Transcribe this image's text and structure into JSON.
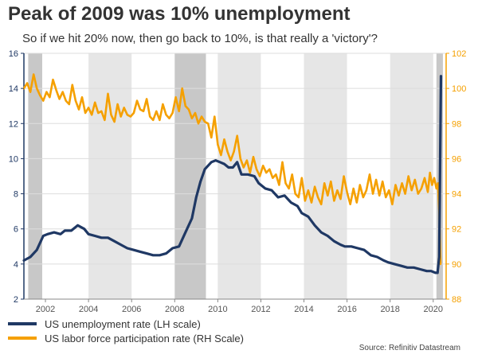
{
  "chart_data": {
    "type": "line",
    "title": "Peak of 2009 was 10% unemployment",
    "subtitle": "So if we hit 20% now, then go back to 10%, is that really a 'victory'?",
    "source": "Source: Refinitiv Datastream",
    "x_ticks": [
      2002,
      2004,
      2006,
      2008,
      2010,
      2012,
      2014,
      2016,
      2018,
      2020
    ],
    "xlim": [
      2001.0,
      2020.6
    ],
    "left_axis": {
      "ylim": [
        2,
        16
      ],
      "ticks": [
        2,
        4,
        6,
        8,
        10,
        12,
        14,
        16
      ],
      "color": "#1f3864"
    },
    "right_axis": {
      "ylim": [
        88,
        102
      ],
      "ticks": [
        88,
        90,
        92,
        94,
        96,
        98,
        100,
        102
      ],
      "color": "#f5a000"
    },
    "shaded_periods": [
      {
        "start": 2001.2,
        "end": 2001.85,
        "kind": "recession"
      },
      {
        "start": 2004.0,
        "end": 2006.0,
        "kind": "band"
      },
      {
        "start": 2008.0,
        "end": 2009.45,
        "kind": "recession"
      },
      {
        "start": 2010.0,
        "end": 2012.0,
        "kind": "band"
      },
      {
        "start": 2014.0,
        "end": 2016.0,
        "kind": "band"
      },
      {
        "start": 2018.0,
        "end": 2020.0,
        "kind": "band"
      },
      {
        "start": 2020.15,
        "end": 2020.45,
        "kind": "recession"
      }
    ],
    "colors": {
      "recession": "#c8c8c8",
      "band": "#e6e6e6",
      "grid": "#dddddd"
    },
    "series": [
      {
        "name": "US unemployment rate (LH scale)",
        "axis": "left",
        "color": "#1f3864",
        "points": [
          [
            2001.0,
            4.2
          ],
          [
            2001.3,
            4.4
          ],
          [
            2001.6,
            4.8
          ],
          [
            2001.9,
            5.6
          ],
          [
            2002.1,
            5.7
          ],
          [
            2002.4,
            5.8
          ],
          [
            2002.7,
            5.7
          ],
          [
            2002.9,
            5.9
          ],
          [
            2003.2,
            5.9
          ],
          [
            2003.5,
            6.2
          ],
          [
            2003.8,
            6.0
          ],
          [
            2004.0,
            5.7
          ],
          [
            2004.3,
            5.6
          ],
          [
            2004.6,
            5.5
          ],
          [
            2004.9,
            5.5
          ],
          [
            2005.2,
            5.3
          ],
          [
            2005.5,
            5.1
          ],
          [
            2005.8,
            4.9
          ],
          [
            2006.1,
            4.8
          ],
          [
            2006.4,
            4.7
          ],
          [
            2006.7,
            4.6
          ],
          [
            2007.0,
            4.5
          ],
          [
            2007.3,
            4.5
          ],
          [
            2007.6,
            4.6
          ],
          [
            2007.9,
            4.9
          ],
          [
            2008.2,
            5.0
          ],
          [
            2008.5,
            5.8
          ],
          [
            2008.8,
            6.6
          ],
          [
            2009.0,
            7.8
          ],
          [
            2009.2,
            8.7
          ],
          [
            2009.4,
            9.4
          ],
          [
            2009.7,
            9.8
          ],
          [
            2009.9,
            9.9
          ],
          [
            2010.1,
            9.8
          ],
          [
            2010.3,
            9.7
          ],
          [
            2010.5,
            9.5
          ],
          [
            2010.7,
            9.5
          ],
          [
            2010.9,
            9.8
          ],
          [
            2011.1,
            9.1
          ],
          [
            2011.4,
            9.1
          ],
          [
            2011.7,
            9.0
          ],
          [
            2011.9,
            8.6
          ],
          [
            2012.2,
            8.3
          ],
          [
            2012.5,
            8.2
          ],
          [
            2012.8,
            7.8
          ],
          [
            2013.1,
            7.9
          ],
          [
            2013.4,
            7.5
          ],
          [
            2013.7,
            7.3
          ],
          [
            2013.9,
            6.9
          ],
          [
            2014.2,
            6.7
          ],
          [
            2014.5,
            6.2
          ],
          [
            2014.8,
            5.8
          ],
          [
            2015.1,
            5.6
          ],
          [
            2015.4,
            5.3
          ],
          [
            2015.7,
            5.1
          ],
          [
            2015.9,
            5.0
          ],
          [
            2016.2,
            5.0
          ],
          [
            2016.5,
            4.9
          ],
          [
            2016.8,
            4.8
          ],
          [
            2017.1,
            4.5
          ],
          [
            2017.4,
            4.4
          ],
          [
            2017.7,
            4.2
          ],
          [
            2017.9,
            4.1
          ],
          [
            2018.2,
            4.0
          ],
          [
            2018.5,
            3.9
          ],
          [
            2018.8,
            3.8
          ],
          [
            2019.1,
            3.8
          ],
          [
            2019.4,
            3.7
          ],
          [
            2019.7,
            3.6
          ],
          [
            2019.9,
            3.6
          ],
          [
            2020.1,
            3.5
          ],
          [
            2020.2,
            3.5
          ],
          [
            2020.28,
            4.4
          ],
          [
            2020.36,
            14.7
          ]
        ]
      },
      {
        "name": "US labor force participation rate (RH Scale)",
        "axis": "right",
        "color": "#f5a000",
        "points": [
          [
            2001.0,
            100.0
          ],
          [
            2001.15,
            100.3
          ],
          [
            2001.3,
            99.8
          ],
          [
            2001.45,
            100.8
          ],
          [
            2001.6,
            100.0
          ],
          [
            2001.75,
            99.6
          ],
          [
            2001.9,
            99.3
          ],
          [
            2002.05,
            99.8
          ],
          [
            2002.2,
            99.5
          ],
          [
            2002.35,
            100.5
          ],
          [
            2002.5,
            99.9
          ],
          [
            2002.65,
            99.4
          ],
          [
            2002.8,
            99.8
          ],
          [
            2002.95,
            99.3
          ],
          [
            2003.1,
            99.1
          ],
          [
            2003.25,
            100.2
          ],
          [
            2003.4,
            99.3
          ],
          [
            2003.55,
            98.8
          ],
          [
            2003.7,
            99.5
          ],
          [
            2003.85,
            98.6
          ],
          [
            2004.0,
            98.9
          ],
          [
            2004.15,
            98.5
          ],
          [
            2004.3,
            99.2
          ],
          [
            2004.45,
            98.6
          ],
          [
            2004.6,
            98.7
          ],
          [
            2004.75,
            98.2
          ],
          [
            2004.9,
            99.7
          ],
          [
            2005.05,
            98.5
          ],
          [
            2005.2,
            98.1
          ],
          [
            2005.35,
            99.1
          ],
          [
            2005.5,
            98.4
          ],
          [
            2005.65,
            98.9
          ],
          [
            2005.8,
            98.5
          ],
          [
            2005.95,
            98.4
          ],
          [
            2006.1,
            98.6
          ],
          [
            2006.25,
            99.3
          ],
          [
            2006.4,
            98.8
          ],
          [
            2006.55,
            98.7
          ],
          [
            2006.7,
            99.4
          ],
          [
            2006.85,
            98.4
          ],
          [
            2007.0,
            98.2
          ],
          [
            2007.15,
            98.7
          ],
          [
            2007.3,
            98.2
          ],
          [
            2007.45,
            99.1
          ],
          [
            2007.6,
            98.5
          ],
          [
            2007.75,
            98.3
          ],
          [
            2007.9,
            98.6
          ],
          [
            2008.05,
            99.5
          ],
          [
            2008.2,
            98.7
          ],
          [
            2008.35,
            100.0
          ],
          [
            2008.5,
            99.0
          ],
          [
            2008.65,
            98.8
          ],
          [
            2008.8,
            98.3
          ],
          [
            2008.95,
            98.6
          ],
          [
            2009.1,
            98.0
          ],
          [
            2009.25,
            98.4
          ],
          [
            2009.4,
            98.1
          ],
          [
            2009.55,
            98.0
          ],
          [
            2009.7,
            97.2
          ],
          [
            2009.85,
            98.4
          ],
          [
            2010.0,
            96.8
          ],
          [
            2010.15,
            96.2
          ],
          [
            2010.3,
            97.1
          ],
          [
            2010.45,
            96.4
          ],
          [
            2010.6,
            95.9
          ],
          [
            2010.75,
            96.4
          ],
          [
            2010.9,
            97.3
          ],
          [
            2011.05,
            96.0
          ],
          [
            2011.2,
            95.5
          ],
          [
            2011.35,
            95.9
          ],
          [
            2011.5,
            95.2
          ],
          [
            2011.65,
            96.1
          ],
          [
            2011.8,
            95.4
          ],
          [
            2011.95,
            95.0
          ],
          [
            2012.1,
            95.6
          ],
          [
            2012.25,
            95.2
          ],
          [
            2012.4,
            95.4
          ],
          [
            2012.55,
            94.9
          ],
          [
            2012.7,
            95.1
          ],
          [
            2012.85,
            94.5
          ],
          [
            2013.0,
            95.8
          ],
          [
            2013.15,
            94.6
          ],
          [
            2013.3,
            94.3
          ],
          [
            2013.45,
            95.1
          ],
          [
            2013.6,
            94.0
          ],
          [
            2013.75,
            93.8
          ],
          [
            2013.9,
            94.9
          ],
          [
            2014.05,
            93.6
          ],
          [
            2014.2,
            94.2
          ],
          [
            2014.35,
            93.5
          ],
          [
            2014.5,
            94.4
          ],
          [
            2014.65,
            93.8
          ],
          [
            2014.8,
            93.4
          ],
          [
            2014.95,
            94.6
          ],
          [
            2015.1,
            93.9
          ],
          [
            2015.25,
            94.7
          ],
          [
            2015.4,
            93.6
          ],
          [
            2015.55,
            94.2
          ],
          [
            2015.7,
            93.7
          ],
          [
            2015.85,
            95.0
          ],
          [
            2016.0,
            94.1
          ],
          [
            2016.15,
            93.4
          ],
          [
            2016.3,
            94.3
          ],
          [
            2016.45,
            93.5
          ],
          [
            2016.6,
            94.5
          ],
          [
            2016.75,
            93.8
          ],
          [
            2016.9,
            94.2
          ],
          [
            2017.05,
            95.1
          ],
          [
            2017.2,
            94.0
          ],
          [
            2017.35,
            94.8
          ],
          [
            2017.5,
            93.9
          ],
          [
            2017.65,
            94.7
          ],
          [
            2017.8,
            93.8
          ],
          [
            2017.95,
            94.2
          ],
          [
            2018.1,
            93.4
          ],
          [
            2018.25,
            94.5
          ],
          [
            2018.4,
            93.9
          ],
          [
            2018.55,
            94.6
          ],
          [
            2018.7,
            94.0
          ],
          [
            2018.85,
            95.0
          ],
          [
            2019.0,
            94.2
          ],
          [
            2019.15,
            94.8
          ],
          [
            2019.3,
            94.0
          ],
          [
            2019.45,
            94.3
          ],
          [
            2019.6,
            94.9
          ],
          [
            2019.75,
            94.1
          ],
          [
            2019.85,
            95.2
          ],
          [
            2019.95,
            94.5
          ],
          [
            2020.05,
            94.9
          ],
          [
            2020.15,
            94.3
          ],
          [
            2020.22,
            94.6
          ],
          [
            2020.28,
            93.0
          ],
          [
            2020.34,
            90.0
          ]
        ]
      }
    ]
  }
}
